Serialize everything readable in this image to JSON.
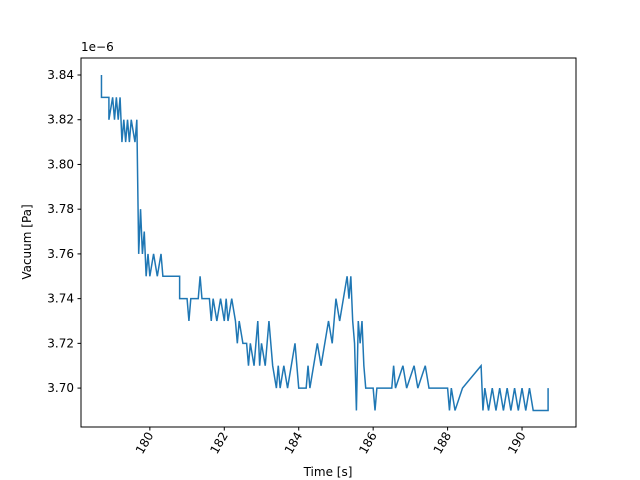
{
  "chart_data": {
    "type": "line",
    "x_label": "Time [s]",
    "y_label": "Vacuum [Pa]",
    "y_offset_label": "1e−6",
    "x": [
      178.7,
      178.7,
      178.9,
      178.9,
      179.0,
      179.05,
      179.1,
      179.15,
      179.2,
      179.25,
      179.3,
      179.35,
      179.4,
      179.45,
      179.5,
      179.6,
      179.65,
      179.7,
      179.75,
      179.8,
      179.85,
      179.9,
      179.95,
      180.0,
      180.1,
      180.2,
      180.3,
      180.35,
      180.8,
      180.8,
      181.0,
      181.05,
      181.1,
      181.3,
      181.35,
      181.4,
      181.6,
      181.65,
      181.7,
      181.8,
      181.9,
      182.0,
      182.05,
      182.1,
      182.2,
      182.3,
      182.35,
      182.4,
      182.5,
      182.6,
      182.65,
      182.7,
      182.8,
      182.9,
      182.95,
      183.0,
      183.1,
      183.2,
      183.3,
      183.4,
      183.45,
      183.5,
      183.6,
      183.7,
      183.9,
      184.0,
      184.2,
      184.25,
      184.3,
      184.4,
      184.5,
      184.6,
      184.7,
      184.8,
      184.9,
      185.0,
      185.1,
      185.2,
      185.3,
      185.35,
      185.4,
      185.45,
      185.5,
      185.55,
      185.6,
      185.65,
      185.7,
      185.75,
      185.8,
      186.0,
      186.05,
      186.1,
      186.5,
      186.55,
      186.6,
      186.8,
      186.9,
      187.1,
      187.2,
      187.4,
      187.5,
      188.0,
      188.05,
      188.1,
      188.2,
      188.4,
      188.9,
      188.95,
      189.0,
      189.1,
      189.2,
      189.3,
      189.4,
      189.5,
      189.6,
      189.7,
      189.8,
      189.9,
      190.0,
      190.1,
      190.2,
      190.3,
      190.7,
      190.7
    ],
    "series": [
      {
        "name": "Vacuum",
        "color": "#1f77b4",
        "values": [
          3.84,
          3.83,
          3.83,
          3.82,
          3.83,
          3.82,
          3.83,
          3.82,
          3.83,
          3.81,
          3.82,
          3.81,
          3.82,
          3.81,
          3.82,
          3.81,
          3.82,
          3.76,
          3.78,
          3.76,
          3.77,
          3.75,
          3.76,
          3.75,
          3.76,
          3.75,
          3.76,
          3.75,
          3.75,
          3.74,
          3.74,
          3.73,
          3.74,
          3.74,
          3.75,
          3.74,
          3.74,
          3.73,
          3.74,
          3.73,
          3.74,
          3.73,
          3.74,
          3.73,
          3.74,
          3.73,
          3.72,
          3.73,
          3.72,
          3.72,
          3.71,
          3.72,
          3.71,
          3.73,
          3.71,
          3.72,
          3.71,
          3.73,
          3.71,
          3.7,
          3.71,
          3.7,
          3.71,
          3.7,
          3.72,
          3.7,
          3.7,
          3.71,
          3.7,
          3.71,
          3.72,
          3.71,
          3.72,
          3.73,
          3.72,
          3.74,
          3.73,
          3.74,
          3.75,
          3.74,
          3.75,
          3.73,
          3.72,
          3.69,
          3.73,
          3.72,
          3.73,
          3.71,
          3.7,
          3.7,
          3.69,
          3.7,
          3.7,
          3.71,
          3.7,
          3.71,
          3.7,
          3.71,
          3.7,
          3.71,
          3.7,
          3.7,
          3.69,
          3.7,
          3.69,
          3.7,
          3.71,
          3.69,
          3.7,
          3.69,
          3.7,
          3.69,
          3.7,
          3.69,
          3.7,
          3.69,
          3.7,
          3.69,
          3.7,
          3.69,
          3.7,
          3.69,
          3.69,
          3.7
        ]
      }
    ],
    "xlim": [
      178.15,
      191.45
    ],
    "xticks": [
      180,
      182,
      184,
      186,
      188,
      190
    ],
    "ylim": [
      3.6826,
      3.8476
    ],
    "yticks": [
      {
        "value": 3.7,
        "label": "3.70"
      },
      {
        "value": 3.72,
        "label": "3.72"
      },
      {
        "value": 3.74,
        "label": "3.74"
      },
      {
        "value": 3.76,
        "label": "3.76"
      },
      {
        "value": 3.78,
        "label": "3.78"
      },
      {
        "value": 3.8,
        "label": "3.80"
      },
      {
        "value": 3.82,
        "label": "3.82"
      },
      {
        "value": 3.84,
        "label": "3.84"
      }
    ],
    "grid": false
  }
}
